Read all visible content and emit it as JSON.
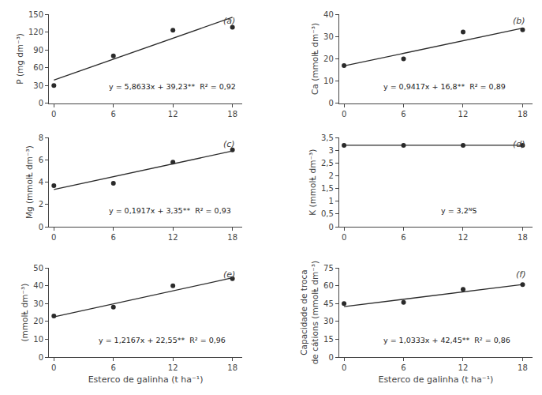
{
  "chart_data": [
    {
      "type": "scatter",
      "ylabel": "P (mg dm⁻³)",
      "xlim": [
        -0.5,
        19
      ],
      "xticks": [
        0,
        6,
        12,
        18
      ],
      "ylim": [
        0,
        150
      ],
      "yticks": [
        0,
        30,
        60,
        90,
        120,
        150
      ],
      "grid": false,
      "series": [
        {
          "type": "line",
          "color": "#2a2a2a",
          "line_style": "solid",
          "x": [
            0,
            18
          ],
          "values": [
            39.23,
            144.7694
          ]
        },
        {
          "type": "scatter",
          "color": "#2a2a2a",
          "marker": "circle",
          "x": [
            0,
            6,
            12,
            18
          ],
          "values": [
            30,
            80,
            123,
            128
          ]
        }
      ],
      "annotations": [
        "y = 5,8633x + 39,23**  R² = 0,92",
        "(a)"
      ]
    },
    {
      "type": "scatter",
      "ylabel": "Ca (mmolⱠ dm⁻³)",
      "xlim": [
        -0.5,
        19
      ],
      "xticks": [
        0,
        6,
        12,
        18
      ],
      "ylim": [
        0,
        40
      ],
      "yticks": [
        0,
        10,
        20,
        30,
        40
      ],
      "grid": false,
      "series": [
        {
          "type": "line",
          "color": "#2a2a2a",
          "line_style": "solid",
          "x": [
            0,
            18
          ],
          "values": [
            16.8,
            33.7506
          ]
        },
        {
          "type": "scatter",
          "color": "#2a2a2a",
          "marker": "circle",
          "x": [
            0,
            6,
            12,
            18
          ],
          "values": [
            17,
            20,
            32,
            33
          ]
        }
      ],
      "annotations": [
        "y = 0,9417x + 16,8**  R² = 0,89",
        "(b)"
      ]
    },
    {
      "type": "scatter",
      "ylabel": "Mg (mmolⱠ dm⁻³)",
      "xlim": [
        -0.5,
        19
      ],
      "xticks": [
        0,
        6,
        12,
        18
      ],
      "ylim": [
        0,
        8
      ],
      "yticks": [
        0,
        2,
        4,
        6,
        8
      ],
      "grid": false,
      "series": [
        {
          "type": "line",
          "color": "#2a2a2a",
          "line_style": "solid",
          "x": [
            0,
            18
          ],
          "values": [
            3.35,
            6.8006
          ]
        },
        {
          "type": "scatter",
          "color": "#2a2a2a",
          "marker": "circle",
          "x": [
            0,
            6,
            12,
            18
          ],
          "values": [
            3.7,
            3.9,
            5.8,
            6.9
          ]
        }
      ],
      "annotations": [
        "y = 0,1917x + 3,35**  R² = 0,93",
        "(c)"
      ]
    },
    {
      "type": "scatter",
      "ylabel": "K (mmolⱠ dm⁻³)",
      "xlim": [
        -0.5,
        19
      ],
      "xticks": [
        0,
        6,
        12,
        18
      ],
      "ylim": [
        0,
        3.5
      ],
      "yticks": [
        0,
        {
          "value": 0.5,
          "label": "0,5"
        },
        1,
        {
          "value": 1.5,
          "label": "1,5"
        },
        2,
        {
          "value": 2.5,
          "label": "2,5"
        },
        3,
        {
          "value": 3.5,
          "label": "3,5"
        }
      ],
      "grid": false,
      "series": [
        {
          "type": "line",
          "color": "#2a2a2a",
          "line_style": "solid",
          "x": [
            0,
            18
          ],
          "values": [
            3.2,
            3.2
          ]
        },
        {
          "type": "scatter",
          "color": "#2a2a2a",
          "marker": "circle",
          "x": [
            0,
            6,
            12,
            18
          ],
          "values": [
            3.2,
            3.2,
            3.2,
            3.2
          ]
        }
      ],
      "annotations": [
        "y = 3,2ᴺS",
        "(d)"
      ]
    },
    {
      "type": "scatter",
      "ylabel": "(mmolⱠ dm⁻³)",
      "xlabel": "Esterco de galinha (t ha⁻¹)",
      "xlim": [
        -0.5,
        19
      ],
      "xticks": [
        0,
        6,
        12,
        18
      ],
      "ylim": [
        0,
        50
      ],
      "yticks": [
        0,
        10,
        20,
        30,
        40,
        50
      ],
      "grid": false,
      "series": [
        {
          "type": "line",
          "color": "#2a2a2a",
          "line_style": "solid",
          "x": [
            0,
            18
          ],
          "values": [
            22.55,
            44.4506
          ]
        },
        {
          "type": "scatter",
          "color": "#2a2a2a",
          "marker": "circle",
          "x": [
            0,
            6,
            12,
            18
          ],
          "values": [
            23,
            28,
            40,
            44
          ]
        }
      ],
      "annotations": [
        "y = 1,2167x + 22,55**  R² = 0,96",
        "(e)"
      ]
    },
    {
      "type": "scatter",
      "ylabel": "Capacidade de troca\nde cátions (mmolⱠ dm⁻³)",
      "xlabel": "Esterco de galinha (t ha⁻¹)",
      "xlim": [
        -0.5,
        19
      ],
      "xticks": [
        0,
        6,
        12,
        18
      ],
      "ylim": [
        0,
        75
      ],
      "yticks": [
        0,
        15,
        30,
        45,
        60,
        75
      ],
      "grid": false,
      "series": [
        {
          "type": "line",
          "color": "#2a2a2a",
          "line_style": "solid",
          "x": [
            0,
            18
          ],
          "values": [
            42.45,
            61.0494
          ]
        },
        {
          "type": "scatter",
          "color": "#2a2a2a",
          "marker": "circle",
          "x": [
            0,
            6,
            12,
            18
          ],
          "values": [
            45,
            46,
            57,
            61
          ]
        }
      ],
      "annotations": [
        "y = 1,0333x + 42,45**  R² = 0,86",
        "(f)"
      ]
    }
  ]
}
